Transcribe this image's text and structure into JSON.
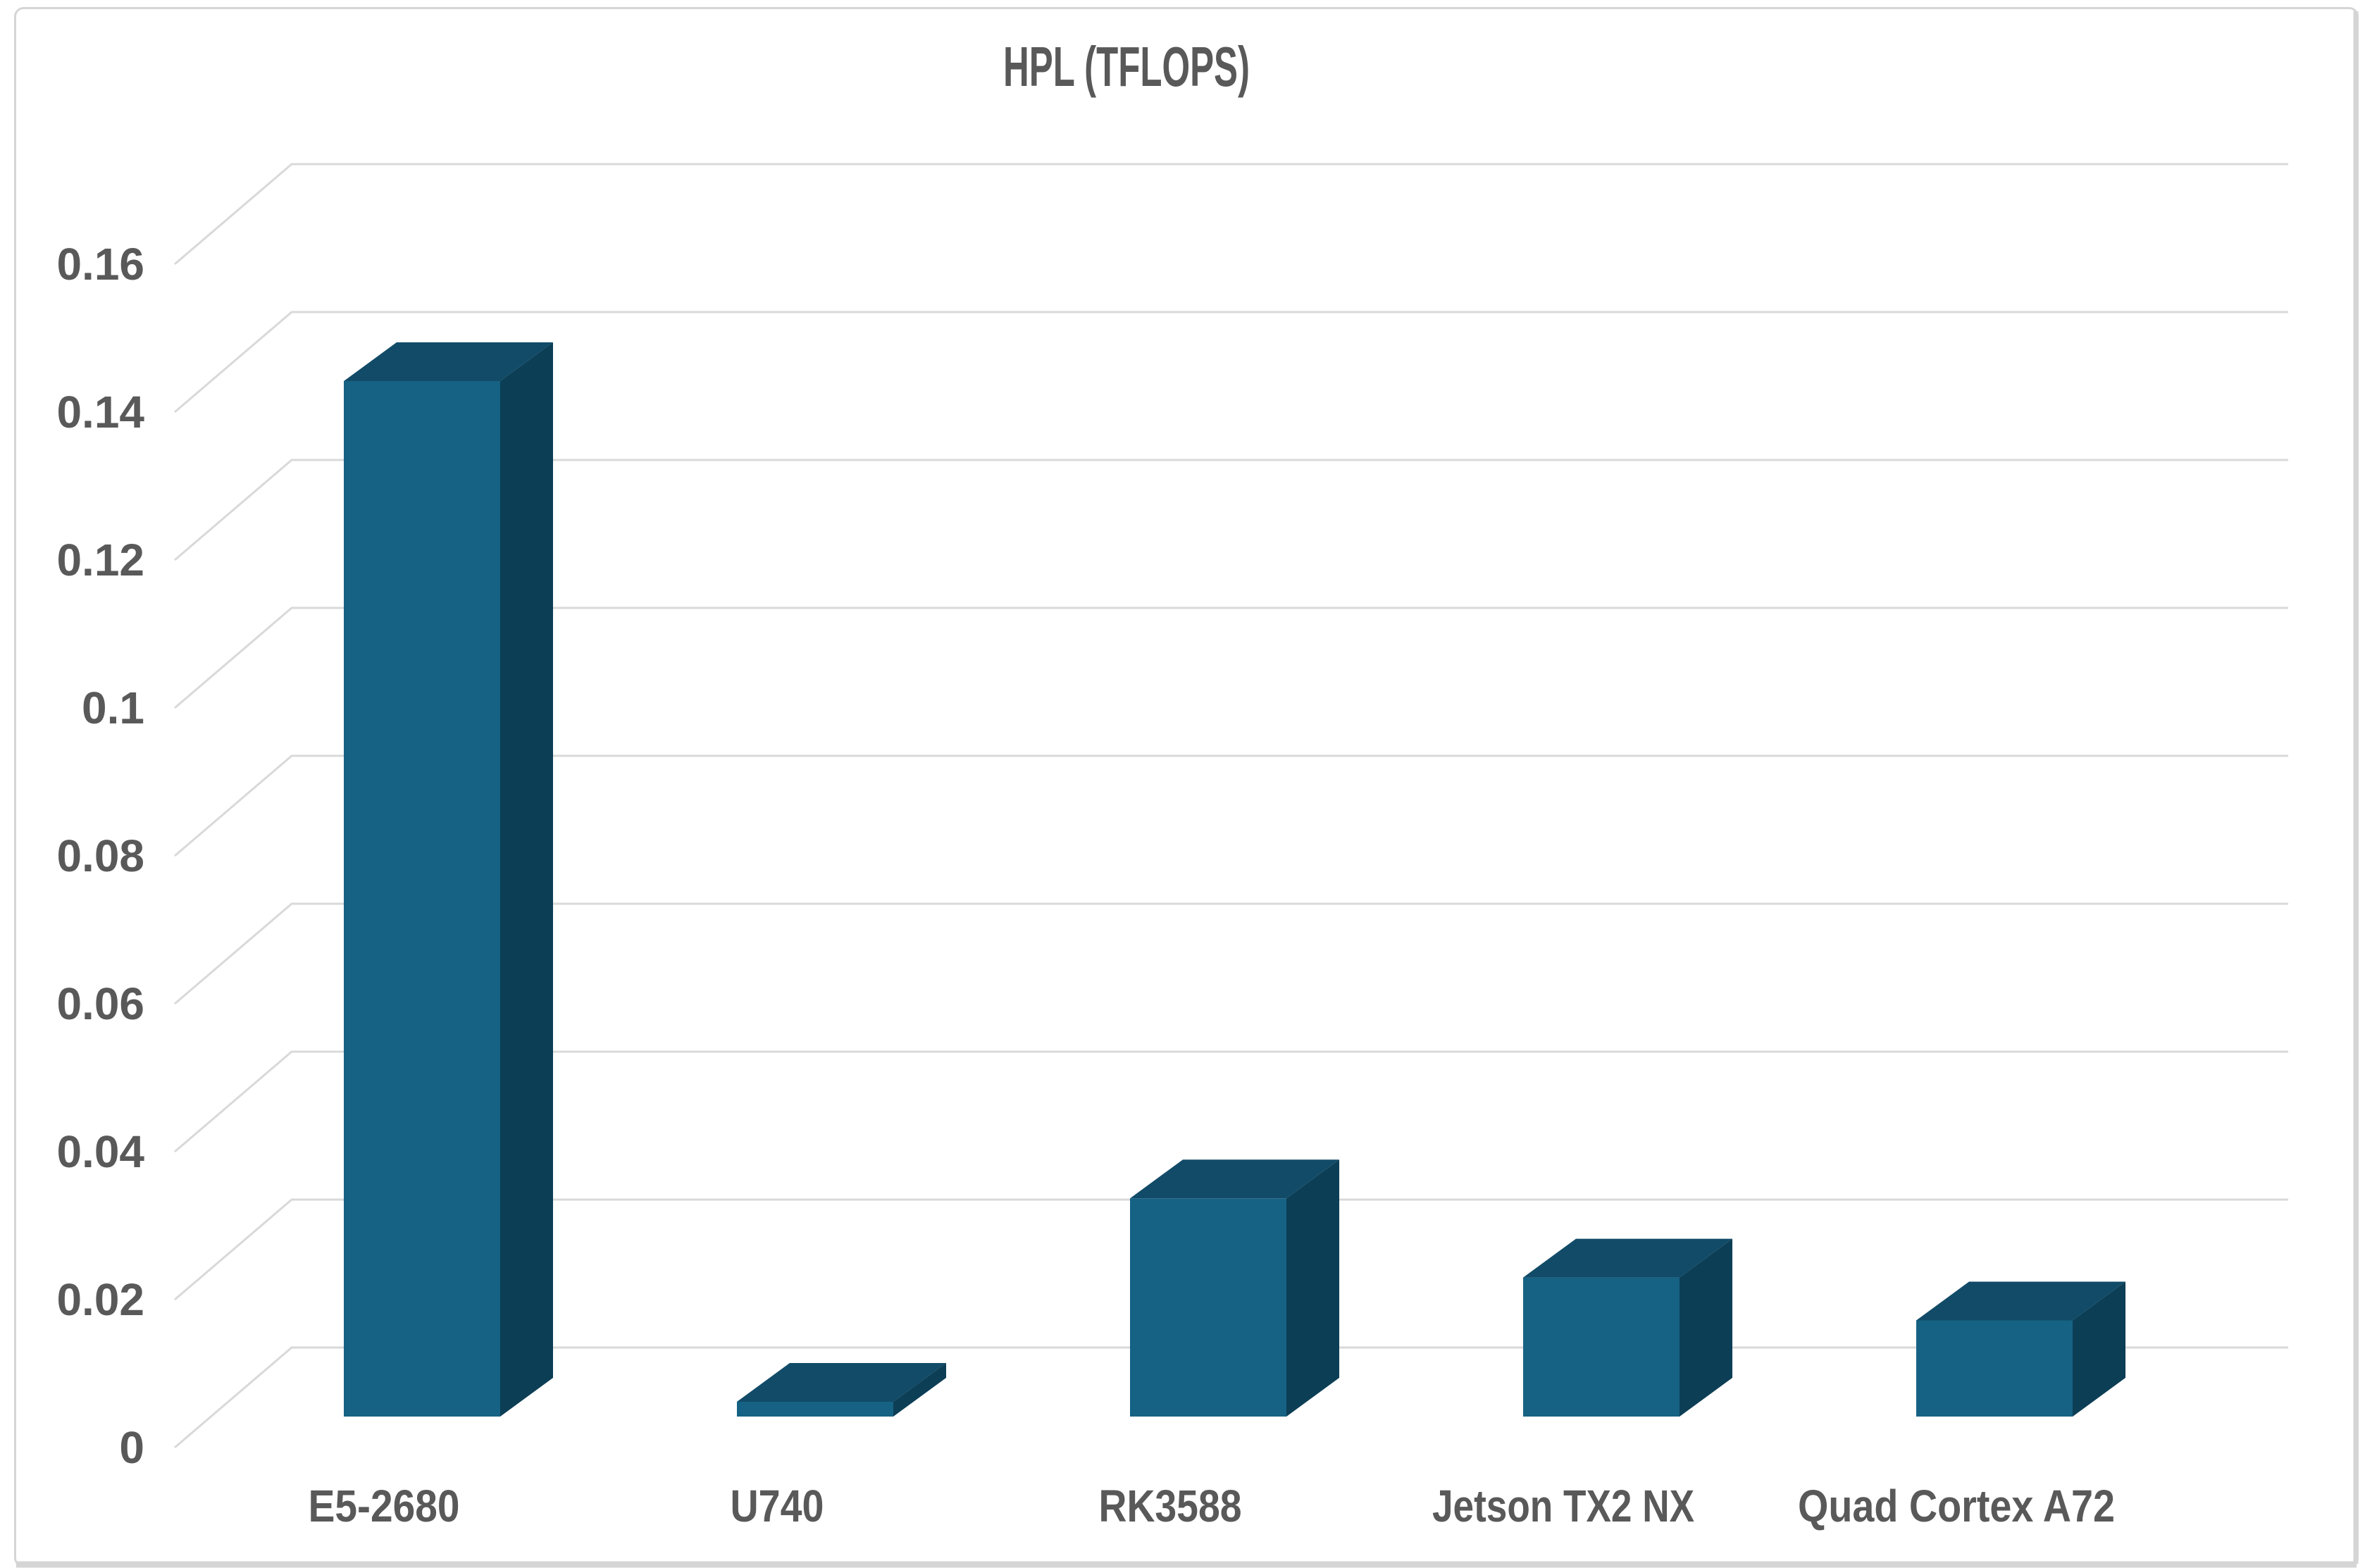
{
  "chart_data": {
    "type": "bar",
    "projection": "3d",
    "title": "HPL (TFLOPS)",
    "categories": [
      "E5-2680",
      "U740",
      "RK3588",
      "Jetson TX2 NX",
      "Quad Cortex A72"
    ],
    "values": [
      0.14,
      0.002,
      0.0295,
      0.0188,
      0.013
    ],
    "series": [
      {
        "name": "HPL (TFLOPS)",
        "values": [
          0.14,
          0.002,
          0.0295,
          0.0188,
          0.013
        ]
      }
    ],
    "xlabel": "",
    "ylabel": "",
    "ylim": [
      0,
      0.16
    ],
    "yticks": {
      "values": [
        0,
        0.02,
        0.04,
        0.06,
        0.08,
        0.1,
        0.12,
        0.14,
        0.16
      ],
      "labels": [
        "0",
        "0.02",
        "0.04",
        "0.06",
        "0.08",
        "0.1",
        "0.12",
        "0.14",
        "0.16"
      ]
    },
    "grid": "horizontal",
    "legend": "none",
    "colors": {
      "bar_front": "#166284",
      "bar_top": "#114B68",
      "bar_side": "#0C3E55",
      "gridline": "#D9D9D9",
      "text": "#595959",
      "frame_border": "#D5D5D5",
      "background": "#FFFFFF"
    }
  }
}
